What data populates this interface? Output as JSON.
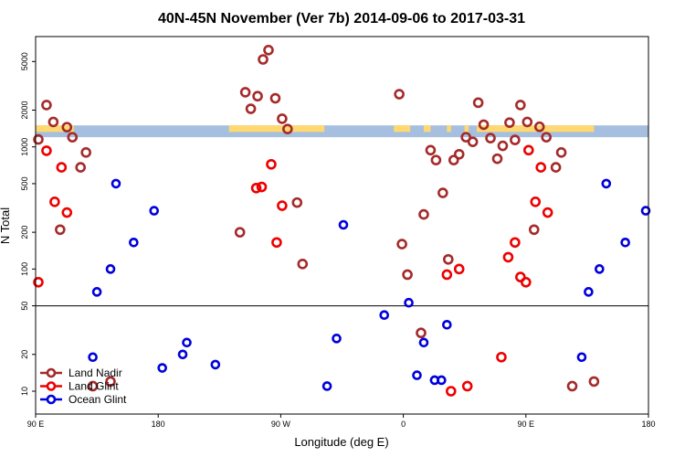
{
  "chart_data": {
    "type": "scatter",
    "title": "40N-45N November (Ver 7b)   2014-09-06 to 2017-03-31",
    "xlabel": "Longitude (deg E)",
    "ylabel": "N Total",
    "x_ticks": [
      {
        "value": 90,
        "label": "90 E"
      },
      {
        "value": 180,
        "label": "180"
      },
      {
        "value": 270,
        "label": "90 W"
      },
      {
        "value": 360,
        "label": "0"
      },
      {
        "value": 450,
        "label": "90 E"
      },
      {
        "value": 540,
        "label": "180"
      }
    ],
    "xlim": [
      90,
      540
    ],
    "y_ticks": [
      10,
      20,
      50,
      100,
      200,
      500,
      1000,
      2000,
      5000
    ],
    "ylim": [
      6.5,
      8000
    ],
    "y_scale": "log",
    "land_band": {
      "y_range": [
        1200,
        1500
      ],
      "land_color": "#FFD970",
      "ocean_color": "#A7BFDF"
    },
    "reference_line": 50,
    "legend_position": "bottom-left",
    "series": [
      {
        "name": "Land Nadir",
        "color": "#A52A2A",
        "points": [
          [
            92,
            1150
          ],
          [
            98,
            2200
          ],
          [
            103,
            1600
          ],
          [
            108,
            210
          ],
          [
            113,
            1450
          ],
          [
            117,
            1200
          ],
          [
            123,
            680
          ],
          [
            127,
            900
          ],
          [
            132,
            11
          ],
          [
            145,
            12
          ],
          [
            240,
            200
          ],
          [
            244,
            2800
          ],
          [
            248,
            2050
          ],
          [
            253,
            2600
          ],
          [
            257,
            5200
          ],
          [
            261,
            6200
          ],
          [
            266,
            2500
          ],
          [
            271,
            1700
          ],
          [
            275,
            1400
          ],
          [
            282,
            350
          ],
          [
            286,
            110
          ],
          [
            357,
            2700
          ],
          [
            359,
            160
          ],
          [
            363,
            90
          ],
          [
            373,
            30
          ],
          [
            375,
            280
          ],
          [
            380,
            940
          ],
          [
            384,
            780
          ],
          [
            389,
            420
          ],
          [
            393,
            120
          ],
          [
            397,
            780
          ],
          [
            401,
            870
          ],
          [
            406,
            1200
          ],
          [
            411,
            1100
          ],
          [
            415,
            2300
          ],
          [
            419,
            1520
          ],
          [
            424,
            1180
          ],
          [
            429,
            800
          ],
          [
            433,
            1020
          ],
          [
            438,
            1580
          ],
          [
            442,
            1140
          ],
          [
            446,
            2200
          ],
          [
            451,
            1600
          ],
          [
            456,
            210
          ],
          [
            460,
            1460
          ],
          [
            465,
            1200
          ],
          [
            472,
            680
          ],
          [
            476,
            900
          ],
          [
            484,
            11
          ],
          [
            500,
            12
          ]
        ]
      },
      {
        "name": "Land Glint",
        "color": "#EE0000",
        "points": [
          [
            92,
            78
          ],
          [
            98,
            930
          ],
          [
            104,
            355
          ],
          [
            109,
            680
          ],
          [
            113,
            290
          ],
          [
            252,
            460
          ],
          [
            256,
            470
          ],
          [
            263,
            720
          ],
          [
            267,
            165
          ],
          [
            271,
            330
          ],
          [
            392,
            90
          ],
          [
            395,
            10
          ],
          [
            401,
            100
          ],
          [
            407,
            11
          ],
          [
            432,
            19
          ],
          [
            437,
            125
          ],
          [
            442,
            165
          ],
          [
            446,
            86
          ],
          [
            450,
            78
          ],
          [
            452,
            940
          ],
          [
            457,
            355
          ],
          [
            461,
            680
          ],
          [
            466,
            290
          ]
        ]
      },
      {
        "name": "Ocean Glint",
        "color": "#0000DD",
        "points": [
          [
            132,
            19
          ],
          [
            135,
            65
          ],
          [
            145,
            100
          ],
          [
            149,
            500
          ],
          [
            162,
            165
          ],
          [
            177,
            300
          ],
          [
            183,
            15.5
          ],
          [
            198,
            20
          ],
          [
            201,
            25
          ],
          [
            222,
            16.5
          ],
          [
            304,
            11
          ],
          [
            311,
            27
          ],
          [
            316,
            230
          ],
          [
            346,
            42
          ],
          [
            364,
            53
          ],
          [
            370,
            13.5
          ],
          [
            375,
            25
          ],
          [
            383,
            12.3
          ],
          [
            388,
            12.3
          ],
          [
            392,
            35
          ],
          [
            491,
            19
          ],
          [
            496,
            65
          ],
          [
            504,
            100
          ],
          [
            509,
            500
          ],
          [
            523,
            165
          ],
          [
            538,
            300
          ]
        ]
      }
    ]
  }
}
